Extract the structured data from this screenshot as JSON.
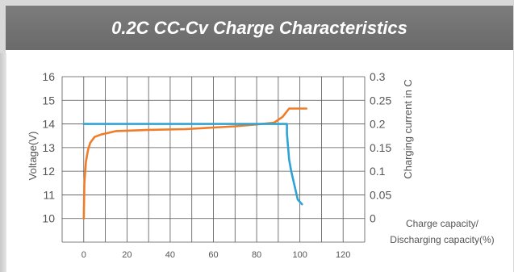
{
  "chart_data": {
    "type": "line",
    "title": "0.2C CC-Cv Charge Characteristics",
    "ylabel": "Voltage(V)",
    "y2label": "Charging current in C",
    "xlabel_lines": [
      "Charge capacity/",
      "Discharging capacity(%)"
    ],
    "xlim": [
      -10,
      130
    ],
    "ylim": [
      9,
      16
    ],
    "y2lim": [
      -0.05,
      0.3
    ],
    "x_ticks": [
      "0",
      "20",
      "40",
      "60",
      "80",
      "100",
      "120"
    ],
    "y_ticks": [
      "16",
      "15",
      "14",
      "13",
      "12",
      "11",
      "10"
    ],
    "y2_ticks": [
      "0.3",
      "0.25",
      "0.2",
      "0.15",
      "0.1",
      "0.05",
      "0"
    ],
    "grid": true,
    "series": [
      {
        "axis": "left",
        "color": "#ef7d28",
        "x": [
          0,
          0.3,
          1,
          2,
          3,
          5,
          8,
          15,
          30,
          47,
          60,
          70,
          80,
          88,
          92,
          95,
          103
        ],
        "y": [
          10.0,
          11.5,
          12.4,
          12.9,
          13.2,
          13.45,
          13.55,
          13.7,
          13.75,
          13.78,
          13.85,
          13.9,
          13.98,
          14.05,
          14.3,
          14.65,
          14.65
        ]
      },
      {
        "axis": "right",
        "color": "#2fa3d6",
        "x": [
          0,
          94,
          94,
          95,
          96,
          98,
          99,
          101
        ],
        "y": [
          0.2,
          0.2,
          0.18,
          0.125,
          0.1,
          0.06,
          0.04,
          0.03
        ]
      }
    ]
  }
}
